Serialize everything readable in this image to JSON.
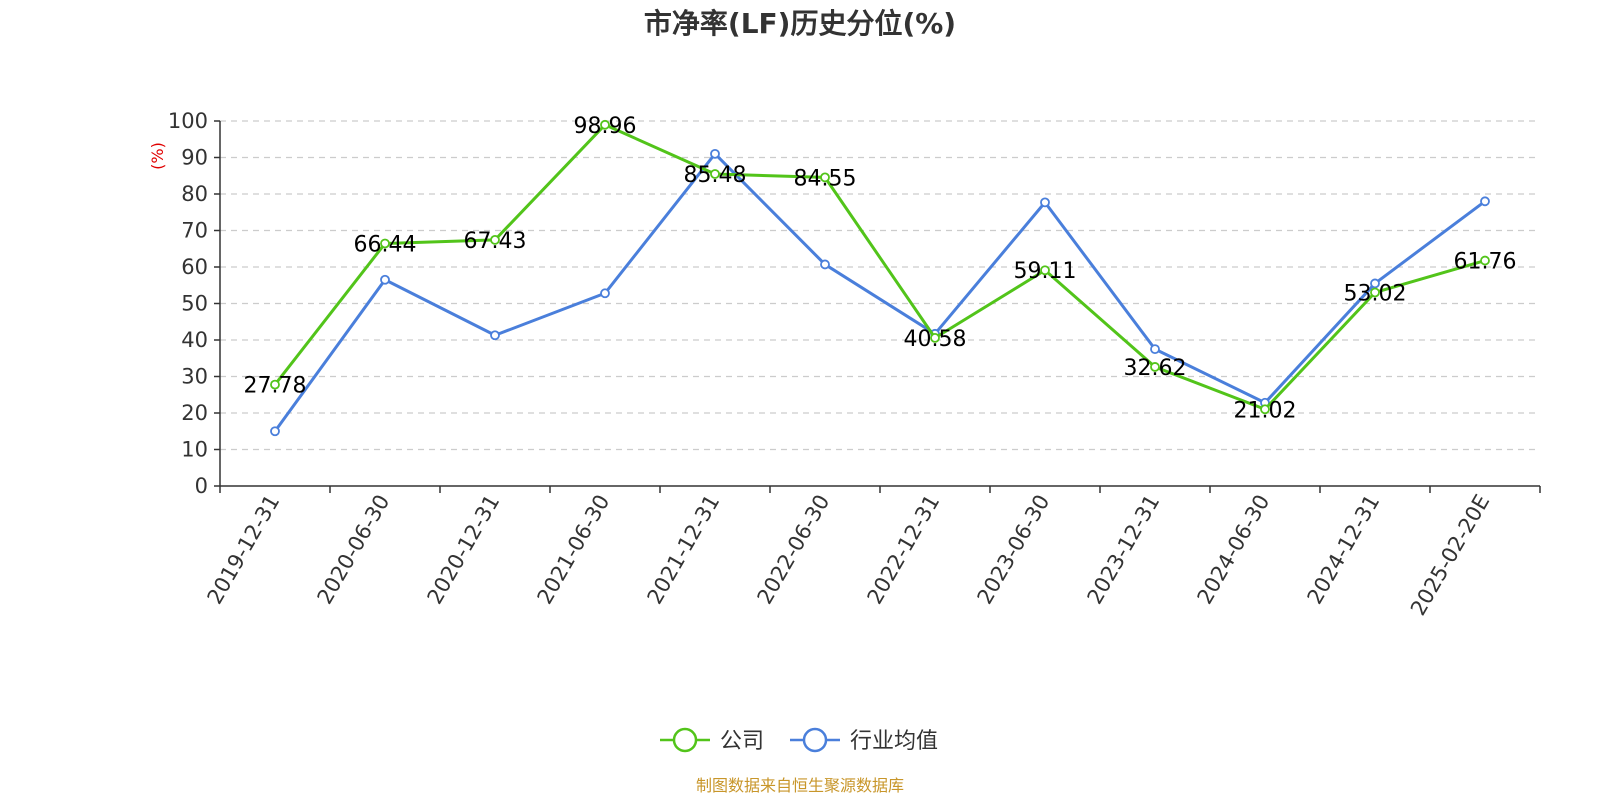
{
  "chart_data": {
    "type": "line",
    "title": "市净率(LF)历史分位(%)",
    "ylabel": "(%)",
    "ylim": [
      0,
      100
    ],
    "yticks": [
      0,
      10,
      20,
      30,
      40,
      50,
      60,
      70,
      80,
      90,
      100
    ],
    "categories": [
      "2019-12-31",
      "2020-06-30",
      "2020-12-31",
      "2021-06-30",
      "2021-12-31",
      "2022-06-30",
      "2022-12-31",
      "2023-06-30",
      "2023-12-31",
      "2024-06-30",
      "2024-12-31",
      "2025-02-20E"
    ],
    "series": [
      {
        "name": "公司",
        "color": "#52c41a",
        "values": [
          27.78,
          66.44,
          67.43,
          98.96,
          85.48,
          84.55,
          40.58,
          59.11,
          32.62,
          21.02,
          53.02,
          61.76
        ],
        "labels": [
          "27.78",
          "66.44",
          "67.43",
          "98.96",
          "85.48",
          "84.55",
          "40.58",
          "59.11",
          "32.62",
          "21.02",
          "53.02",
          "61.76"
        ]
      },
      {
        "name": "行业均值",
        "color": "#4a7fdb",
        "values": [
          15,
          56.5,
          41.3,
          52.8,
          91,
          60.7,
          41.7,
          77.7,
          37.5,
          22.8,
          55.5,
          78
        ]
      }
    ],
    "grid": true,
    "legend_position": "bottom-center",
    "source": "制图数据来自恒生聚源数据库"
  }
}
